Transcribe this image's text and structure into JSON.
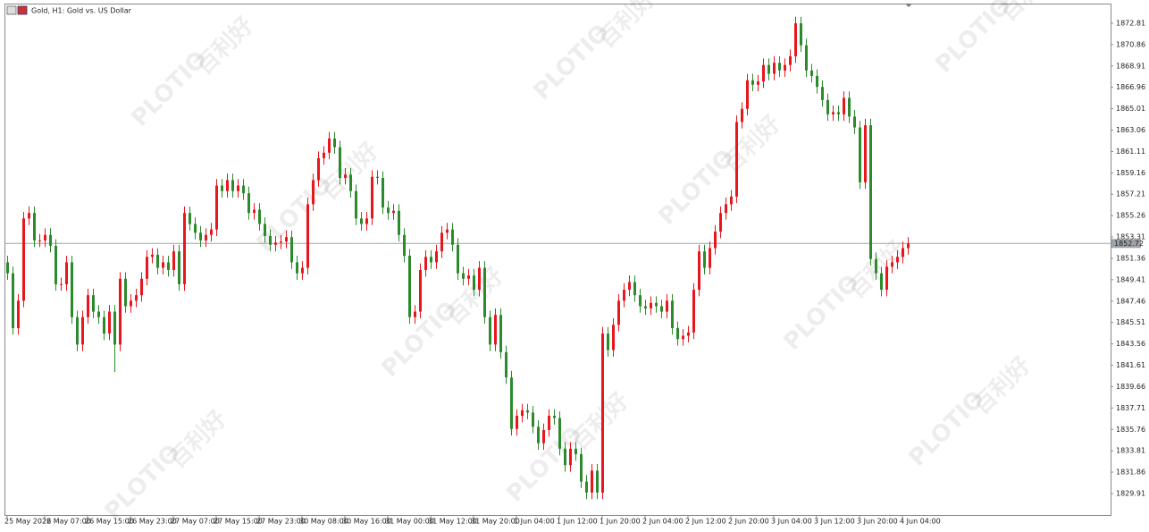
{
  "chart_data": {
    "type": "candlestick",
    "title": "Gold, H1:  Gold vs. US Dollar",
    "watermark": [
      "PLOTIO",
      "百利好"
    ],
    "up_color": "#e8161d",
    "down_color": "#2b8a2b",
    "categories": [
      "25 May 2022",
      null,
      null,
      null,
      null,
      null,
      null,
      "26 May 07:00",
      null,
      null,
      null,
      null,
      null,
      null,
      null,
      "26 May 15:00",
      null,
      null,
      null,
      null,
      null,
      null,
      null,
      "26 May 23:00",
      null,
      null,
      null,
      null,
      null,
      null,
      null,
      "27 May 07:00",
      null,
      null,
      null,
      null,
      null,
      null,
      null,
      "27 May 15:00",
      null,
      null,
      null,
      null,
      null,
      null,
      null,
      "27 May 23:00",
      null,
      null,
      null,
      null,
      null,
      null,
      null,
      "30 May 08:00",
      null,
      null,
      null,
      null,
      null,
      null,
      null,
      "30 May 16:00",
      null,
      null,
      null,
      null,
      null,
      null,
      null,
      "31 May 00:00",
      null,
      null,
      null,
      null,
      null,
      null,
      null,
      "31 May 12:00",
      null,
      null,
      null,
      null,
      null,
      null,
      null,
      "31 May 20:00",
      null,
      null,
      null,
      null,
      null,
      null,
      null,
      "1 Jun 04:00",
      null,
      null,
      null,
      null,
      null,
      null,
      null,
      "1 Jun 12:00",
      null,
      null,
      null,
      null,
      null,
      null,
      null,
      "1 Jun 20:00",
      null,
      null,
      null,
      null,
      null,
      null,
      null,
      "2 Jun 04:00",
      null,
      null,
      null,
      null,
      null,
      null,
      null,
      "2 Jun 12:00",
      null,
      null,
      null,
      null,
      null,
      null,
      null,
      "2 Jun 20:00",
      null,
      null,
      null,
      null,
      null,
      null,
      null,
      "3 Jun 04:00",
      null,
      null,
      null,
      null,
      null,
      null,
      null,
      "3 Jun 12:00",
      null,
      null,
      null,
      null,
      null,
      null,
      null,
      "3 Jun 20:00",
      null,
      null,
      null,
      null,
      null,
      null,
      null,
      "4 Jun 04:00",
      null
    ],
    "open": [
      1851.0,
      1850.0,
      1845.0,
      1847.5,
      1855.0,
      1855.5,
      1853.0,
      1853.0,
      1853.5,
      1852.5,
      1849.0,
      1849.0,
      1851.0,
      1846.0,
      1843.5,
      1846.0,
      1848.0,
      1846.5,
      1846.0,
      1844.5,
      1846.5,
      1843.5,
      1849.5,
      1847.0,
      1847.5,
      1848.0,
      1849.5,
      1851.5,
      1851.7,
      1850.5,
      1851.0,
      1850.3,
      1852.0,
      1849.0,
      1855.5,
      1854.5,
      1853.7,
      1853.0,
      1853.5,
      1854.0,
      1858.0,
      1857.5,
      1858.5,
      1857.5,
      1858.0,
      1857.3,
      1855.5,
      1855.8,
      1854.5,
      1853.4,
      1852.6,
      1852.8,
      1852.9,
      1853.3,
      1851.0,
      1850.0,
      1850.5,
      1856.3,
      1858.5,
      1860.5,
      1861.0,
      1862.3,
      1861.5,
      1858.7,
      1859.0,
      1857.5,
      1855.0,
      1854.5,
      1855.0,
      1858.8,
      1858.7,
      1856.0,
      1855.5,
      1855.7,
      1853.5,
      1851.6,
      1846.0,
      1846.5,
      1850.3,
      1851.5,
      1851.0,
      1852.0,
      1853.7,
      1854.0,
      1852.6,
      1850.0,
      1849.5,
      1849.8,
      1848.5,
      1850.5,
      1846.0,
      1843.5,
      1846.2,
      1842.8,
      1840.5,
      1835.8,
      1837.0,
      1837.5,
      1837.3,
      1836.0,
      1834.5,
      1835.7,
      1837.0,
      1836.8,
      1834.0,
      1832.5,
      1834.0,
      1833.5,
      1831.0,
      1830.0,
      1832.0,
      1830.0,
      1844.5,
      1843.0,
      1845.3,
      1847.5,
      1848.5,
      1849.2,
      1848.0,
      1847.0,
      1846.8,
      1847.3,
      1847.0,
      1846.5,
      1847.5,
      1845.0,
      1844.0,
      1844.3,
      1844.6,
      1848.5,
      1852.0,
      1850.5,
      1852.3,
      1853.8,
      1855.5,
      1856.3,
      1857.0,
      1863.8,
      1865.0,
      1867.6,
      1867.2,
      1867.5,
      1869.0,
      1868.2,
      1869.2,
      1868.5,
      1869.0,
      1869.8,
      1872.8,
      1870.8,
      1868.5,
      1868.0,
      1867.0,
      1865.8,
      1864.5,
      1864.7,
      1864.5,
      1866.0,
      1864.3,
      1863.3,
      1858.3,
      1863.5,
      1851.3,
      1850.0,
      1848.5,
      1850.6,
      1851.0,
      1851.5,
      1852.3
    ],
    "high": [
      1851.6,
      1850.6,
      1848.1,
      1855.6,
      1856.1,
      1856.1,
      1853.6,
      1854.1,
      1854.1,
      1853.1,
      1849.6,
      1851.6,
      1851.6,
      1846.6,
      1846.6,
      1848.6,
      1848.6,
      1847.1,
      1846.6,
      1847.1,
      1847.1,
      1850.1,
      1850.1,
      1848.1,
      1848.6,
      1850.1,
      1852.1,
      1852.3,
      1852.3,
      1851.6,
      1851.6,
      1852.6,
      1852.6,
      1856.1,
      1856.1,
      1855.1,
      1854.3,
      1854.1,
      1854.6,
      1858.6,
      1858.6,
      1859.1,
      1859.1,
      1858.6,
      1858.6,
      1857.9,
      1856.4,
      1856.4,
      1855.1,
      1854.0,
      1853.4,
      1853.5,
      1853.9,
      1853.9,
      1851.6,
      1851.1,
      1856.9,
      1859.1,
      1861.1,
      1861.6,
      1862.9,
      1862.9,
      1862.1,
      1859.6,
      1859.6,
      1858.1,
      1855.6,
      1855.6,
      1859.4,
      1859.4,
      1859.3,
      1856.6,
      1856.3,
      1856.3,
      1854.1,
      1852.2,
      1847.1,
      1850.9,
      1852.1,
      1852.1,
      1852.6,
      1854.3,
      1854.6,
      1854.6,
      1853.2,
      1850.6,
      1850.4,
      1850.4,
      1851.1,
      1851.1,
      1846.6,
      1846.8,
      1846.8,
      1843.4,
      1841.1,
      1837.6,
      1838.1,
      1838.1,
      1837.9,
      1836.6,
      1836.3,
      1837.6,
      1837.6,
      1837.4,
      1834.6,
      1834.6,
      1834.6,
      1834.1,
      1831.6,
      1832.6,
      1832.6,
      1845.1,
      1845.1,
      1845.9,
      1848.1,
      1849.1,
      1849.8,
      1849.8,
      1848.6,
      1847.6,
      1847.9,
      1847.9,
      1847.6,
      1848.1,
      1848.1,
      1845.6,
      1844.9,
      1845.2,
      1849.1,
      1852.6,
      1852.6,
      1852.9,
      1854.4,
      1856.1,
      1856.9,
      1857.6,
      1864.4,
      1865.6,
      1868.2,
      1868.2,
      1868.1,
      1869.6,
      1869.6,
      1869.8,
      1869.8,
      1869.6,
      1870.4,
      1873.4,
      1873.4,
      1871.4,
      1869.1,
      1868.6,
      1867.6,
      1866.4,
      1865.3,
      1865.3,
      1866.6,
      1866.6,
      1864.9,
      1863.9,
      1864.1,
      1864.1,
      1851.9,
      1850.6,
      1851.2,
      1851.6,
      1852.1,
      1852.9,
      1853.3
    ],
    "low": [
      1849.4,
      1844.4,
      1844.4,
      1846.9,
      1854.4,
      1852.4,
      1852.4,
      1852.4,
      1851.9,
      1848.4,
      1848.4,
      1848.4,
      1845.4,
      1842.9,
      1842.9,
      1845.4,
      1845.9,
      1845.4,
      1843.9,
      1843.9,
      1841.0,
      1842.9,
      1846.4,
      1846.4,
      1846.9,
      1847.4,
      1848.9,
      1850.9,
      1849.9,
      1849.9,
      1849.7,
      1849.7,
      1848.4,
      1848.4,
      1853.9,
      1853.1,
      1852.4,
      1852.4,
      1852.9,
      1853.4,
      1856.9,
      1856.9,
      1856.9,
      1856.9,
      1856.7,
      1854.9,
      1854.9,
      1853.9,
      1852.8,
      1852.0,
      1852.0,
      1852.2,
      1852.3,
      1850.4,
      1849.4,
      1849.4,
      1849.9,
      1855.7,
      1857.9,
      1859.9,
      1860.4,
      1860.9,
      1858.1,
      1858.1,
      1856.9,
      1854.4,
      1853.9,
      1853.9,
      1854.4,
      1858.1,
      1855.4,
      1854.9,
      1854.9,
      1852.9,
      1851.0,
      1845.4,
      1845.4,
      1845.9,
      1849.7,
      1850.4,
      1850.4,
      1851.4,
      1853.1,
      1852.0,
      1849.4,
      1848.9,
      1848.9,
      1847.9,
      1847.9,
      1845.4,
      1842.9,
      1842.9,
      1842.2,
      1839.9,
      1835.2,
      1835.2,
      1836.4,
      1836.7,
      1835.4,
      1833.9,
      1833.9,
      1835.1,
      1836.2,
      1833.4,
      1831.9,
      1831.9,
      1832.9,
      1830.4,
      1829.4,
      1829.4,
      1829.4,
      1829.4,
      1842.4,
      1842.4,
      1844.7,
      1846.9,
      1847.9,
      1847.4,
      1846.4,
      1846.2,
      1846.2,
      1846.4,
      1845.9,
      1845.9,
      1844.4,
      1843.4,
      1843.4,
      1843.7,
      1844.0,
      1847.9,
      1849.9,
      1849.9,
      1851.7,
      1853.2,
      1854.9,
      1855.7,
      1856.4,
      1863.2,
      1864.4,
      1866.6,
      1866.6,
      1866.9,
      1867.6,
      1867.6,
      1867.9,
      1867.9,
      1868.4,
      1869.2,
      1870.2,
      1867.9,
      1867.4,
      1866.4,
      1865.2,
      1863.9,
      1863.9,
      1863.9,
      1863.9,
      1863.7,
      1862.7,
      1857.7,
      1857.7,
      1850.7,
      1849.4,
      1847.9,
      1847.9,
      1850.0,
      1850.4,
      1850.9,
      1851.7
    ],
    "close": [
      1850.0,
      1845.0,
      1847.5,
      1855.0,
      1855.5,
      1853.0,
      1853.0,
      1853.5,
      1852.5,
      1849.0,
      1849.0,
      1851.0,
      1846.0,
      1843.5,
      1846.0,
      1848.0,
      1846.5,
      1846.0,
      1844.5,
      1846.5,
      1843.5,
      1849.5,
      1847.0,
      1847.5,
      1848.0,
      1849.5,
      1851.5,
      1851.7,
      1850.5,
      1851.0,
      1850.3,
      1852.0,
      1849.0,
      1855.5,
      1854.5,
      1853.7,
      1853.0,
      1853.5,
      1854.0,
      1858.0,
      1857.5,
      1858.5,
      1857.5,
      1858.0,
      1857.3,
      1855.5,
      1855.8,
      1854.5,
      1853.4,
      1852.6,
      1852.8,
      1852.9,
      1853.3,
      1851.0,
      1850.0,
      1850.5,
      1856.3,
      1858.5,
      1860.5,
      1861.0,
      1862.3,
      1861.5,
      1858.7,
      1859.0,
      1857.5,
      1855.0,
      1854.5,
      1855.0,
      1858.8,
      1858.7,
      1856.0,
      1855.5,
      1855.7,
      1853.5,
      1851.6,
      1846.0,
      1846.5,
      1850.3,
      1851.5,
      1851.0,
      1852.0,
      1853.7,
      1854.0,
      1852.6,
      1850.0,
      1849.5,
      1849.8,
      1848.5,
      1850.5,
      1846.0,
      1843.5,
      1846.2,
      1842.8,
      1840.5,
      1835.8,
      1837.0,
      1837.5,
      1837.3,
      1836.0,
      1834.5,
      1835.7,
      1837.0,
      1836.8,
      1834.0,
      1832.5,
      1834.0,
      1833.5,
      1831.0,
      1830.0,
      1832.0,
      1830.0,
      1844.5,
      1843.0,
      1845.3,
      1847.5,
      1848.5,
      1849.2,
      1848.0,
      1847.0,
      1846.8,
      1847.3,
      1847.0,
      1846.5,
      1847.5,
      1845.0,
      1844.0,
      1844.3,
      1844.6,
      1848.5,
      1852.0,
      1850.5,
      1852.3,
      1853.8,
      1855.5,
      1856.3,
      1857.0,
      1863.8,
      1865.0,
      1867.6,
      1867.2,
      1867.5,
      1869.0,
      1868.2,
      1869.2,
      1868.5,
      1869.0,
      1869.8,
      1872.8,
      1870.8,
      1868.5,
      1868.0,
      1867.0,
      1865.8,
      1864.5,
      1864.7,
      1864.5,
      1866.0,
      1864.3,
      1863.3,
      1858.3,
      1863.5,
      1851.3,
      1850.0,
      1848.5,
      1850.6,
      1851.0,
      1851.5,
      1852.3,
      1852.72
    ],
    "ylim": [
      1827.87,
      1874.52
    ],
    "yticks": [
      1829.91,
      1831.86,
      1833.81,
      1835.76,
      1837.71,
      1839.66,
      1841.61,
      1843.56,
      1845.51,
      1847.46,
      1849.41,
      1851.36,
      1853.31,
      1855.26,
      1857.21,
      1859.16,
      1861.11,
      1863.06,
      1865.01,
      1866.96,
      1868.91,
      1870.86,
      1872.81
    ],
    "current_price": 1852.72,
    "grid": false
  }
}
